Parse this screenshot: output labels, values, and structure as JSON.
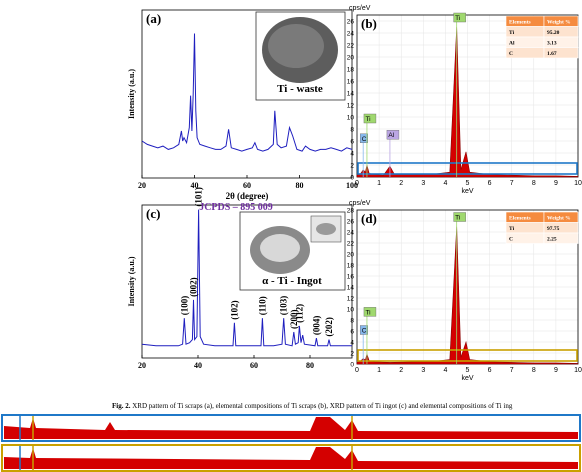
{
  "chart_data": [
    {
      "type": "line",
      "panel": "(a)",
      "inset_label": "Ti - waste",
      "xlabel": "2θ (degree)",
      "ylabel": "Intensity (a.u.)",
      "color": "#1f1fbf",
      "x": [
        20,
        22,
        24,
        26,
        28,
        30,
        32,
        34,
        35,
        35.5,
        36,
        37,
        38,
        38.5,
        39,
        39.5,
        40,
        40.5,
        41,
        42,
        44,
        46,
        48,
        50,
        52,
        53,
        54,
        56,
        58,
        60,
        62,
        63,
        64,
        66,
        68,
        70,
        70.6,
        71.5,
        73,
        75,
        76.2,
        77.4,
        79,
        81,
        82.3,
        84,
        86,
        88,
        90,
        92,
        94,
        96,
        98,
        100
      ],
      "values": [
        22,
        20,
        19,
        18,
        19,
        17,
        18,
        20,
        28,
        22,
        24,
        21,
        30,
        49,
        28,
        50,
        86,
        40,
        24,
        20,
        19,
        18,
        17,
        17,
        19,
        29,
        18,
        17,
        16,
        17,
        18,
        21,
        17,
        16,
        17,
        20,
        40,
        20,
        18,
        19,
        30,
        25,
        17,
        16,
        19,
        17,
        16,
        17,
        17,
        18,
        17,
        16,
        18,
        17
      ],
      "xlim": [
        20,
        100
      ],
      "xticks": [
        20,
        40,
        60,
        80,
        100
      ],
      "ylim": [
        0,
        100
      ]
    },
    {
      "type": "area",
      "panel": "(b)",
      "yunit": "cps/eV",
      "xlabel": "keV",
      "color": "#d40000",
      "highlight_color": "#1f78c8",
      "x": [
        0,
        0.15,
        0.28,
        0.38,
        0.45,
        0.55,
        0.8,
        1.2,
        1.49,
        1.7,
        2.5,
        3.5,
        4.2,
        4.51,
        4.7,
        4.93,
        5.1,
        6,
        7,
        8,
        9,
        10
      ],
      "values": [
        0.3,
        0.5,
        1.2,
        0.8,
        2.0,
        0.6,
        0.4,
        0.3,
        1.8,
        0.4,
        0.4,
        0.5,
        0.8,
        25,
        1.2,
        4.2,
        0.8,
        0.4,
        0.3,
        0.2,
        0.2,
        0.1
      ],
      "peak_labels": [
        null,
        null,
        "C",
        null,
        "Ti",
        null,
        null,
        null,
        "Al",
        null,
        null,
        null,
        null,
        "Ti",
        null,
        null,
        null,
        null,
        null,
        null,
        null,
        null
      ],
      "label_colors": {
        "Ti": "#9fd86e",
        "C": "#86b8ec",
        "Al": "#bba6e4"
      },
      "xlim": [
        0,
        10
      ],
      "xticks": [
        0,
        1,
        2,
        3,
        4,
        5,
        6,
        7,
        8,
        9,
        10
      ],
      "ylim": [
        0,
        27
      ],
      "yticks": [
        0,
        2,
        4,
        6,
        8,
        10,
        12,
        14,
        16,
        18,
        20,
        22,
        24,
        26
      ],
      "grid": true,
      "table": {
        "header": [
          "Elements",
          "Weight %"
        ],
        "rows": [
          [
            "Ti",
            "95.20"
          ],
          [
            "Al",
            "3.13"
          ],
          [
            "C",
            "1.67"
          ]
        ]
      }
    },
    {
      "type": "line",
      "panel": "(c)",
      "subtitle": "JCPDS – 895 009",
      "inset_label": "α - Ti - Ingot",
      "ylabel": "Intensity (a.u.)",
      "color": "#1f1fbf",
      "x": [
        20,
        25,
        30,
        33,
        34.5,
        35.1,
        35.7,
        37,
        38,
        38.4,
        38.8,
        39.6,
        40.2,
        40.8,
        42,
        46,
        50,
        52.5,
        53,
        53.5,
        57,
        61,
        62.5,
        63,
        63.5,
        67,
        70,
        70.6,
        71.2,
        73.6,
        74.2,
        74.8,
        75.8,
        76.2,
        76.8,
        77.4,
        78,
        81.8,
        82.3,
        82.8,
        86.3,
        86.8,
        87.3,
        90,
        95
      ],
      "values": [
        9,
        8,
        8,
        8,
        9,
        26,
        9,
        10,
        12,
        38,
        12,
        14,
        97,
        14,
        9,
        8,
        8,
        8,
        23,
        8,
        8,
        8,
        8,
        26,
        8,
        8,
        9,
        26,
        9,
        8,
        17,
        9,
        10,
        21,
        10,
        15,
        9,
        8,
        13,
        8,
        8,
        12,
        8,
        8,
        8
      ],
      "peak_labels": [
        null,
        null,
        null,
        null,
        null,
        "(100)",
        null,
        null,
        null,
        "(002)",
        null,
        null,
        "(101)",
        null,
        null,
        null,
        null,
        null,
        "(102)",
        null,
        null,
        null,
        null,
        "(110)",
        null,
        null,
        null,
        "(103)",
        null,
        null,
        "(200)",
        null,
        null,
        "(112)",
        null,
        null,
        null,
        null,
        "(004)",
        null,
        null,
        "(202)",
        null,
        null,
        null
      ],
      "xlim": [
        20,
        95
      ],
      "xticks": [
        20,
        40,
        60,
        80
      ],
      "ylim": [
        0,
        100
      ]
    },
    {
      "type": "area",
      "panel": "(d)",
      "yunit": "cps/eV",
      "xlabel": "keV",
      "color": "#d40000",
      "highlight_color": "#c9a000",
      "x": [
        0,
        0.15,
        0.28,
        0.38,
        0.45,
        0.55,
        0.8,
        1.5,
        2.5,
        3.5,
        4.2,
        4.51,
        4.7,
        4.93,
        5.1,
        6,
        7,
        8,
        9,
        10
      ],
      "values": [
        0.3,
        0.5,
        1.0,
        0.7,
        1.8,
        0.6,
        0.4,
        0.3,
        0.4,
        0.5,
        0.8,
        25,
        1.2,
        4.0,
        0.8,
        0.4,
        0.3,
        0.2,
        0.2,
        0.1
      ],
      "peak_labels": [
        null,
        null,
        "C",
        null,
        "Ti",
        null,
        null,
        null,
        null,
        null,
        null,
        "Ti",
        null,
        null,
        null,
        null,
        null,
        null,
        null,
        null
      ],
      "label_colors": {
        "Ti": "#9fd86e",
        "C": "#86b8ec"
      },
      "xlim": [
        0,
        10
      ],
      "xticks": [
        0,
        1,
        2,
        3,
        4,
        5,
        6,
        7,
        8,
        9,
        10
      ],
      "ylim": [
        0,
        28
      ],
      "yticks": [
        0,
        2,
        4,
        6,
        8,
        10,
        12,
        14,
        16,
        18,
        20,
        22,
        24,
        26,
        28
      ],
      "grid": true,
      "table": {
        "header": [
          "Elements",
          "Weight %"
        ],
        "rows": [
          [
            "Ti",
            "97.75"
          ],
          [
            "C",
            "2.25"
          ]
        ]
      }
    }
  ],
  "caption": {
    "label": "Fig. 2.",
    "text": "XRD pattern of Ti scraps (a), elemental compositions of Ti scraps (b), XRD pattern of Ti ingot (c) and elemental compositions of Ti ing"
  }
}
